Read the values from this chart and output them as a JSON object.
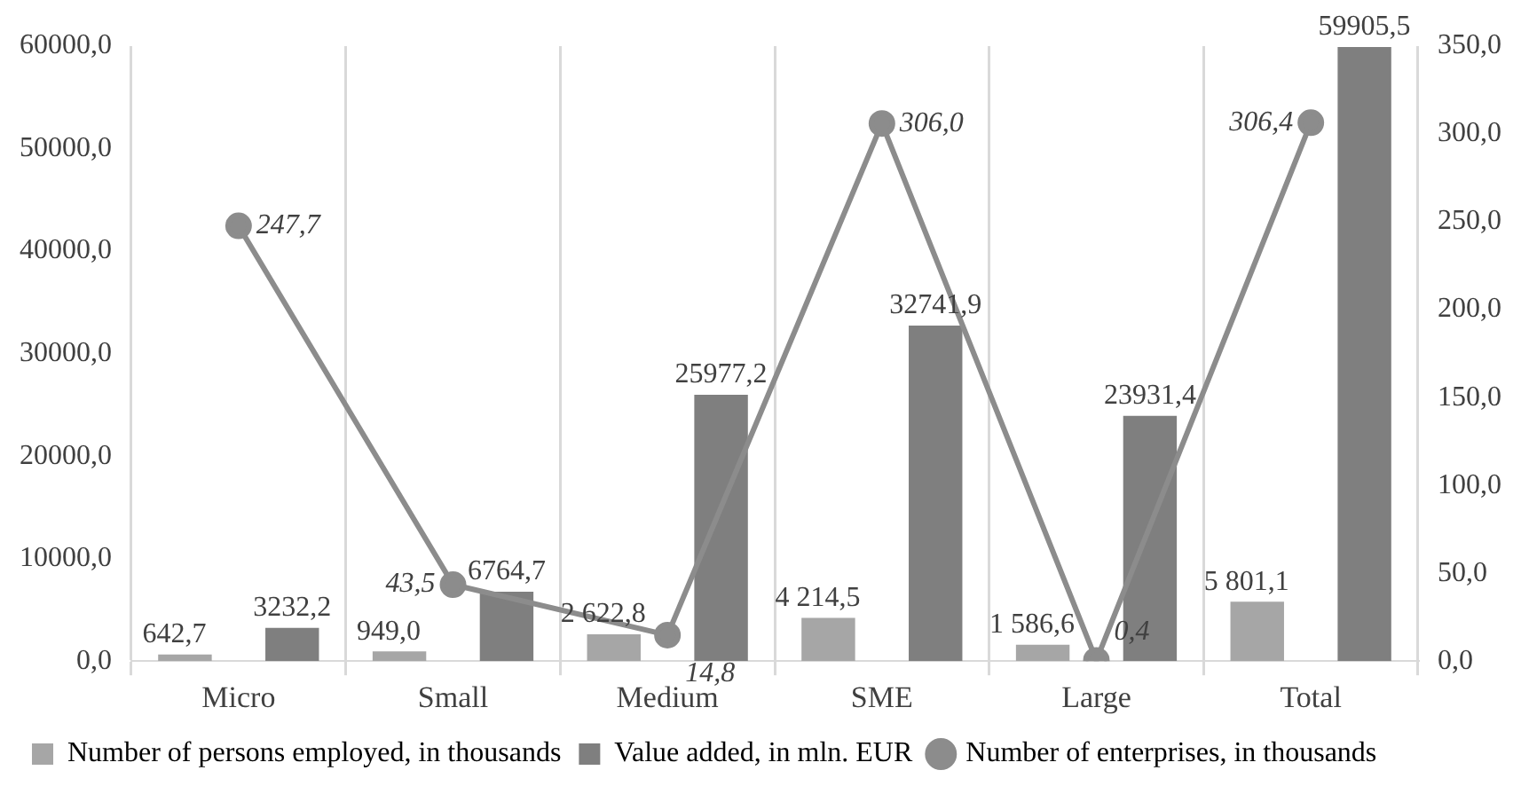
{
  "chart_data": {
    "type": "bar",
    "categories": [
      "Micro",
      "Small",
      "Medium",
      "SME",
      "Large",
      "Total"
    ],
    "series": [
      {
        "name": "Number of persons employed, in thousands",
        "color": "#a6a6a6",
        "values": [
          642.7,
          949.0,
          2622.8,
          4214.5,
          1586.6,
          5801.1
        ],
        "value_labels": [
          "642,7",
          "949,0",
          "2 622,8",
          "4 214,5",
          "1 586,6",
          "5 801,1"
        ]
      },
      {
        "name": "Value added, in mln. EUR",
        "color": "#7f7f7f",
        "values": [
          3232.2,
          6764.7,
          25977.2,
          32741.9,
          23931.4,
          59905.5
        ],
        "value_labels": [
          "3232,2",
          "6764,7",
          "25977,2",
          "32741,9",
          "23931,4",
          "59905,5"
        ]
      },
      {
        "name": "Number of enterprises, in thousands",
        "type": "line",
        "axis": "y2",
        "color": "#8c8c8c",
        "marker": "circle",
        "values": [
          247.7,
          43.5,
          14.8,
          306.0,
          0.4,
          306.4
        ],
        "value_labels": [
          "247,7",
          "43,5",
          "14,8",
          "306,0",
          "0,4",
          "306,4"
        ]
      }
    ],
    "ylim": [
      0,
      60000
    ],
    "yticks": [
      {
        "value": 0,
        "label": "0,0"
      },
      {
        "value": 10000,
        "label": "10000,0"
      },
      {
        "value": 20000,
        "label": "20000,0"
      },
      {
        "value": 30000,
        "label": "30000,0"
      },
      {
        "value": 40000,
        "label": "40000,0"
      },
      {
        "value": 50000,
        "label": "50000,0"
      },
      {
        "value": 60000,
        "label": "60000,0"
      }
    ],
    "y2lim": [
      0,
      350
    ],
    "y2ticks": [
      {
        "value": 0,
        "label": "0,0"
      },
      {
        "value": 50,
        "label": "50,0"
      },
      {
        "value": 100,
        "label": "100,0"
      },
      {
        "value": 150,
        "label": "150,0"
      },
      {
        "value": 200,
        "label": "200,0"
      },
      {
        "value": 250,
        "label": "250,0"
      },
      {
        "value": 300,
        "label": "300,0"
      },
      {
        "value": 350,
        "label": "350,0"
      }
    ],
    "grid": "x",
    "legend": "bottom"
  }
}
